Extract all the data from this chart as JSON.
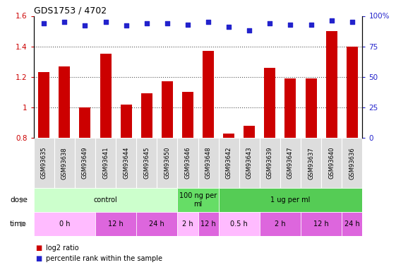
{
  "title": "GDS1753 / 4702",
  "samples": [
    "GSM93635",
    "GSM93638",
    "GSM93649",
    "GSM93641",
    "GSM93644",
    "GSM93645",
    "GSM93650",
    "GSM93646",
    "GSM93648",
    "GSM93642",
    "GSM93643",
    "GSM93639",
    "GSM93647",
    "GSM93637",
    "GSM93640",
    "GSM93636"
  ],
  "log2_ratio": [
    1.23,
    1.27,
    1.0,
    1.35,
    1.02,
    1.09,
    1.17,
    1.1,
    1.37,
    0.83,
    0.88,
    1.26,
    1.19,
    1.19,
    1.5,
    1.4
  ],
  "pct_rank": [
    94,
    95,
    92,
    95,
    92,
    94,
    94,
    93,
    95,
    91,
    88,
    94,
    93,
    93,
    96,
    95
  ],
  "ylim_left": [
    0.8,
    1.6
  ],
  "ylim_right": [
    0,
    100
  ],
  "yticks_left": [
    0.8,
    1.0,
    1.2,
    1.4,
    1.6
  ],
  "yticks_right": [
    0,
    25,
    50,
    75,
    100
  ],
  "ytick_labels_left": [
    "0.8",
    "1",
    "1.2",
    "1.4",
    "1.6"
  ],
  "ytick_labels_right": [
    "0",
    "25",
    "50",
    "75",
    "100%"
  ],
  "bar_color": "#cc0000",
  "dot_color": "#2222cc",
  "bar_baseline": 0.8,
  "dose_groups": [
    {
      "label": "control",
      "start": 0,
      "end": 7,
      "color": "#ccffcc"
    },
    {
      "label": "100 ng per\nml",
      "start": 7,
      "end": 9,
      "color": "#66dd66"
    },
    {
      "label": "1 ug per ml",
      "start": 9,
      "end": 16,
      "color": "#55cc55"
    }
  ],
  "time_groups": [
    {
      "label": "0 h",
      "start": 0,
      "end": 3,
      "color": "#ffbbff"
    },
    {
      "label": "12 h",
      "start": 3,
      "end": 5,
      "color": "#dd66dd"
    },
    {
      "label": "24 h",
      "start": 5,
      "end": 7,
      "color": "#dd66dd"
    },
    {
      "label": "2 h",
      "start": 7,
      "end": 8,
      "color": "#ffbbff"
    },
    {
      "label": "12 h",
      "start": 8,
      "end": 9,
      "color": "#dd66dd"
    },
    {
      "label": "0.5 h",
      "start": 9,
      "end": 11,
      "color": "#ffbbff"
    },
    {
      "label": "2 h",
      "start": 11,
      "end": 13,
      "color": "#dd66dd"
    },
    {
      "label": "12 h",
      "start": 13,
      "end": 15,
      "color": "#dd66dd"
    },
    {
      "label": "24 h",
      "start": 15,
      "end": 16,
      "color": "#dd66dd"
    }
  ],
  "left_axis_color": "#cc0000",
  "right_axis_color": "#2222cc",
  "grid_color": "#555555",
  "tick_bg_color": "#dddddd",
  "legend_red_label": "log2 ratio",
  "legend_blue_label": "percentile rank within the sample",
  "dose_row_label": "dose",
  "time_row_label": "time",
  "arrow_color": "#888888"
}
